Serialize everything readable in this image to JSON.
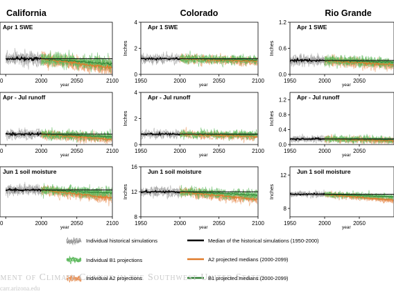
{
  "columns": [
    {
      "title": "California"
    },
    {
      "title": "Colorado"
    },
    {
      "title": "Rio Grande"
    }
  ],
  "legend": {
    "hist_sims": "Individual historical simulations",
    "b1_proj": "Individual B1 projections",
    "a2_proj": "Individual A2 projections",
    "hist_median": "Median of the historical simulations (1950-2000)",
    "a2_median": "A2 projected medians (2000-2099)",
    "b1_median": "B1 projected medians (2000-2099)"
  },
  "watermark": {
    "line1": "sment of Climate Change in the Southwest United States",
    "line2": "carr.arizona.edu"
  },
  "colors": {
    "historical": "#9a9a9a",
    "b1": "#5cb85c",
    "a2": "#e8935a",
    "median_hist": "#000000",
    "median_a2": "#e07b2a",
    "median_b1": "#2e7d32"
  },
  "chart_data": [
    {
      "type": "line",
      "region": "California",
      "title": "Apr 1 SWE",
      "xlabel": "",
      "ylabel": "",
      "xlim": [
        1940,
        2100
      ],
      "ylim": [
        0,
        4
      ],
      "xticks": [
        "",
        "2000",
        "2050",
        "2100"
      ],
      "xticks_values": [
        1950,
        2000,
        2050,
        2100
      ],
      "yticks": [],
      "show_year": false,
      "hist_median_level": 1.2,
      "a2_end": 0.5,
      "b1_end": 0.8,
      "noise": 0.9
    },
    {
      "type": "line",
      "region": "Colorado",
      "title": "Apr 1 SWE",
      "xlabel": "year",
      "ylabel": "Inches",
      "xlim": [
        1950,
        2100
      ],
      "ylim": [
        0,
        4
      ],
      "xticks": [
        "1950",
        "2000",
        "2050",
        "2100"
      ],
      "xticks_values": [
        1950,
        2000,
        2050,
        2100
      ],
      "yticks": [
        "0",
        "2",
        "4"
      ],
      "yticks_values": [
        0,
        2,
        4
      ],
      "show_year": false,
      "hist_median_level": 1.2,
      "a2_end": 1.0,
      "b1_end": 1.1,
      "noise": 0.6
    },
    {
      "type": "line",
      "region": "Rio Grande",
      "title": "Apr 1 SWE",
      "xlabel": "year",
      "ylabel": "Inches",
      "xlim": [
        1950,
        2100
      ],
      "ylim": [
        0,
        1.2
      ],
      "xticks": [
        "1950",
        "2000",
        "2050"
      ],
      "xticks_values": [
        1950,
        2000,
        2050
      ],
      "yticks": [
        "0.0",
        "0.6",
        "1.2"
      ],
      "yticks_values": [
        0,
        0.6,
        1.2
      ],
      "show_year": false,
      "hist_median_level": 0.32,
      "a2_end": 0.22,
      "b1_end": 0.28,
      "noise": 0.2
    },
    {
      "type": "line",
      "region": "California",
      "title": "Apr - Jul runoff",
      "xlabel": "",
      "ylabel": "",
      "xlim": [
        1940,
        2100
      ],
      "ylim": [
        0,
        4
      ],
      "xticks": [
        "",
        "2000",
        "2050",
        "2100"
      ],
      "xticks_values": [
        1950,
        2000,
        2050,
        2100
      ],
      "yticks": [],
      "show_year": false,
      "hist_median_level": 0.8,
      "a2_end": 0.4,
      "b1_end": 0.6,
      "noise": 0.6
    },
    {
      "type": "line",
      "region": "Colorado",
      "title": "Apr - Jul runoff",
      "xlabel": "year",
      "ylabel": "Inches",
      "xlim": [
        1950,
        2100
      ],
      "ylim": [
        0,
        4
      ],
      "xticks": [
        "1950",
        "2000",
        "2050",
        "2100"
      ],
      "xticks_values": [
        1950,
        2000,
        2050,
        2100
      ],
      "yticks": [
        "0",
        "2",
        "4"
      ],
      "yticks_values": [
        0,
        2,
        4
      ],
      "show_year": false,
      "hist_median_level": 0.8,
      "a2_end": 0.6,
      "b1_end": 0.75,
      "noise": 0.5
    },
    {
      "type": "line",
      "region": "Rio Grande",
      "title": "Apr - Jul runoff",
      "xlabel": "year",
      "ylabel": "Inches",
      "xlim": [
        1950,
        2100
      ],
      "ylim": [
        0,
        1.4
      ],
      "xticks": [
        "1950",
        "2000",
        "2050"
      ],
      "xticks_values": [
        1950,
        2000,
        2050
      ],
      "yticks": [
        "0.0",
        "0.4",
        "0.8",
        "1.2"
      ],
      "yticks_values": [
        0,
        0.4,
        0.8,
        1.2
      ],
      "show_year": false,
      "hist_median_level": 0.15,
      "a2_end": 0.1,
      "b1_end": 0.13,
      "noise": 0.15
    },
    {
      "type": "line",
      "region": "California",
      "title": "Jun 1 soil moisture",
      "xlabel": "",
      "ylabel": "",
      "xlim": [
        1940,
        2100
      ],
      "ylim": [
        8,
        16
      ],
      "xticks": [
        "",
        "2000",
        "2050",
        "2100"
      ],
      "xticks_values": [
        1950,
        2000,
        2050,
        2100
      ],
      "yticks": [],
      "show_year": false,
      "hist_median_level": 12.3,
      "a2_end": 11.0,
      "b1_end": 11.8,
      "noise": 1.4
    },
    {
      "type": "line",
      "region": "Colorado",
      "title": "Jun 1 soil moisture",
      "xlabel": "year",
      "ylabel": "Inches",
      "xlim": [
        1950,
        2100
      ],
      "ylim": [
        8,
        16
      ],
      "xticks": [
        "1950",
        "2000",
        "2050",
        "2100"
      ],
      "xticks_values": [
        1950,
        2000,
        2050,
        2100
      ],
      "yticks": [
        "8",
        "12",
        "16"
      ],
      "yticks_values": [
        8,
        12,
        16
      ],
      "show_year": true,
      "hist_median_level": 12.0,
      "a2_end": 10.8,
      "b1_end": 11.5,
      "noise": 1.3
    },
    {
      "type": "line",
      "region": "Rio Grande",
      "title": "Jun 1 soil moisture",
      "xlabel": "year",
      "ylabel": "Inches",
      "xlim": [
        1950,
        2100
      ],
      "ylim": [
        7,
        13
      ],
      "xticks": [
        "1950",
        "2000",
        "2050"
      ],
      "xticks_values": [
        1950,
        2000,
        2050
      ],
      "yticks": [
        "8",
        "12"
      ],
      "yticks_values": [
        8,
        12
      ],
      "show_year": true,
      "hist_median_level": 9.7,
      "a2_end": 9.0,
      "b1_end": 9.4,
      "noise": 0.6
    }
  ]
}
